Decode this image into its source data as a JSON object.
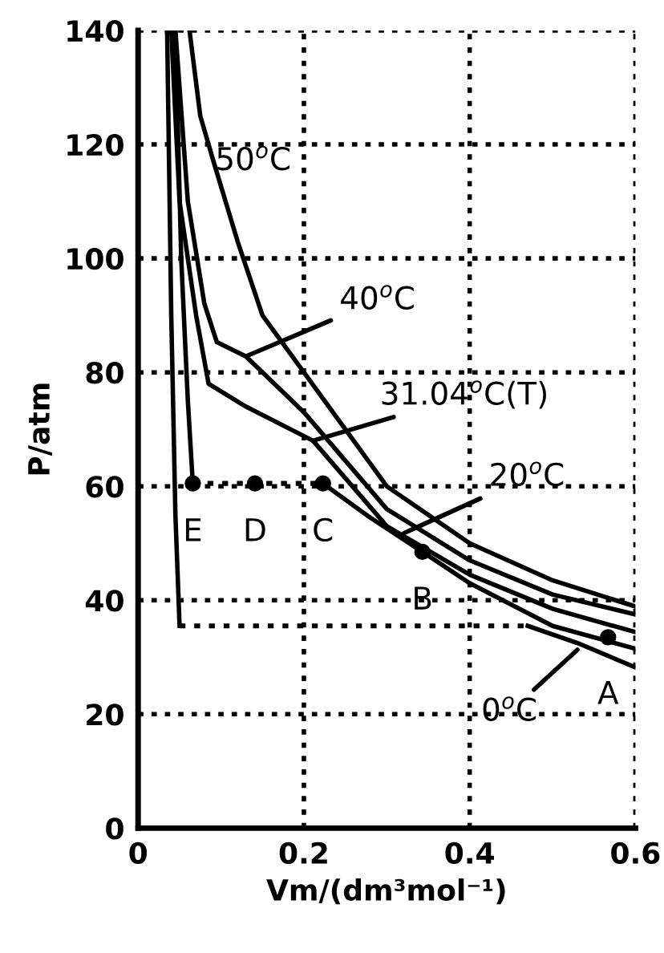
{
  "chart_data": {
    "type": "line",
    "xlabel": "Vm/(dm³mol⁻¹)",
    "ylabel": "P/atm",
    "xlim": [
      0,
      0.6
    ],
    "ylim": [
      0,
      140
    ],
    "xticks": [
      0,
      0.2,
      0.4,
      0.6
    ],
    "yticks": [
      0,
      20,
      40,
      60,
      80,
      100,
      120,
      140
    ],
    "grid": true,
    "marker": "none",
    "line_style": "solid",
    "series": [
      {
        "color": "#000000",
        "x": [
          0.035,
          0.04,
          0.045,
          0.05
        ],
        "values": [
          140,
          90,
          55,
          35.5
        ]
      },
      {
        "color": "#000000",
        "x": [
          0.05,
          0.47
        ],
        "values": [
          35.5,
          35.5
        ],
        "line_style": "dotted"
      },
      {
        "color": "#000000",
        "x": [
          0.47,
          0.53,
          0.6
        ],
        "values": [
          35.5,
          32.5,
          28.2
        ]
      },
      {
        "color": "#000000",
        "x": [
          0.045,
          0.052,
          0.06,
          0.066
        ],
        "values": [
          140,
          100,
          75,
          60.5
        ]
      },
      {
        "color": "#000000",
        "x": [
          0.066,
          0.223
        ],
        "values": [
          60.5,
          60.5
        ],
        "line_style": "dotted"
      },
      {
        "color": "#000000",
        "x": [
          0.223,
          0.28,
          0.343,
          0.4,
          0.5,
          0.6
        ],
        "values": [
          60.5,
          54.5,
          48.5,
          43,
          35.5,
          31.5
        ]
      },
      {
        "color": "#000000",
        "x": [
          0.04,
          0.05,
          0.07,
          0.085,
          0.13,
          0.211,
          0.3,
          0.4,
          0.5,
          0.6
        ],
        "values": [
          140,
          110,
          90,
          78,
          74,
          68,
          53,
          44.5,
          38.5,
          34.4
        ]
      },
      {
        "color": "#000000",
        "x": [
          0.045,
          0.06,
          0.08,
          0.095,
          0.13,
          0.2,
          0.3,
          0.4,
          0.5,
          0.6
        ],
        "values": [
          140,
          110,
          92,
          85.3,
          82.8,
          73,
          56,
          47,
          41,
          37.5
        ]
      },
      {
        "color": "#000000",
        "x": [
          0.062,
          0.075,
          0.091,
          0.12,
          0.15,
          0.2,
          0.3,
          0.4,
          0.5,
          0.6
        ],
        "values": [
          140,
          125,
          117,
          103,
          90,
          80,
          60,
          50,
          43.5,
          38.9
        ]
      },
      {
        "color": "#000000",
        "type": "scatter",
        "marker": "circle",
        "x": [
          0.567,
          0.343,
          0.223,
          0.141,
          0.066
        ],
        "values": [
          33.5,
          48.5,
          60.5,
          60.5,
          60.5
        ]
      }
    ],
    "annotations": [
      {
        "text": "50$^{o}$C",
        "x": 0.093,
        "y": 117
      },
      {
        "text": "40$^{o}$C",
        "x": 0.13,
        "y": 82.8
      },
      {
        "text": "31.04$^{o}$C(T)",
        "x": 0.211,
        "y": 68
      },
      {
        "text": "20$^{o}$C",
        "x": 0.321,
        "y": 51.8
      },
      {
        "text": "0$^{o}$C",
        "x": 0.53,
        "y": 31.3
      },
      {
        "text": "A",
        "x": 0.567,
        "y": 33.5
      },
      {
        "text": "B",
        "x": 0.343,
        "y": 48.5
      },
      {
        "text": "C",
        "x": 0.223,
        "y": 60.5
      },
      {
        "text": "D",
        "x": 0.141,
        "y": 60.5
      },
      {
        "text": "E",
        "x": 0.066,
        "y": 60.5
      }
    ]
  }
}
